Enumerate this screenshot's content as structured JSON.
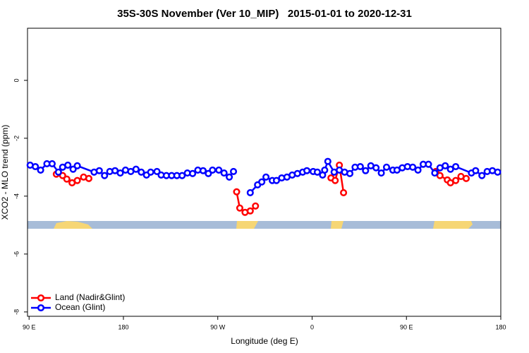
{
  "chart_data": {
    "type": "line",
    "title": "35S-30S November (Ver 10_MIP)   2015-01-01 to 2020-12-31",
    "x_label": "Longitude (deg E)",
    "y_label": "XCO2 - MLO trend (ppm)",
    "xlim": [
      88.5,
      540
    ],
    "ylim": [
      -8.15,
      1.8
    ],
    "xticks": [
      {
        "value": 90,
        "label": "90 E"
      },
      180,
      {
        "value": 270,
        "label": "90 W"
      },
      {
        "value": 360,
        "label": "0"
      },
      {
        "value": 450,
        "label": "90 E"
      },
      {
        "value": 540,
        "label": "180"
      }
    ],
    "yticks": [
      0,
      -2,
      -4,
      -6,
      -8
    ],
    "legend": "bottom-left",
    "series": [
      {
        "name": "Land (Nadir&Glint)",
        "color": "#ff0000",
        "x": [
          116,
          122,
          126,
          131,
          136,
          142,
          147,
          231,
          288,
          291,
          296,
          301,
          306,
          345,
          378,
          382,
          386,
          390,
          450,
          478,
          482,
          489,
          492,
          497,
          502,
          507
        ],
        "values": [
          -3.24,
          -3.29,
          -3.41,
          -3.54,
          -3.46,
          -3.34,
          -3.39,
          null,
          -3.85,
          -4.41,
          -4.56,
          -4.51,
          -4.34,
          null,
          -3.37,
          -3.46,
          -2.93,
          -3.88,
          null,
          -3.15,
          -3.29,
          -3.44,
          -3.54,
          -3.46,
          -3.32,
          -3.39
        ]
      },
      {
        "name": "Ocean (Glint)",
        "color": "#0000ff",
        "x": [
          91,
          96,
          101,
          107,
          112,
          118,
          122,
          127,
          132,
          136,
          152,
          157,
          162,
          167,
          172,
          177,
          182,
          187,
          192,
          197,
          202,
          206,
          212,
          216,
          221,
          226,
          231,
          236,
          241,
          246,
          251,
          256,
          261,
          265,
          271,
          276,
          281,
          285,
          293,
          301,
          308,
          312,
          316,
          322,
          326,
          331,
          336,
          341,
          346,
          351,
          355,
          361,
          365,
          370,
          372,
          375,
          381,
          386,
          391,
          396,
          401,
          406,
          411,
          416,
          421,
          426,
          431,
          437,
          441,
          446,
          451,
          456,
          461,
          466,
          471,
          477,
          482,
          487,
          492,
          497,
          512,
          516,
          522,
          527,
          532,
          537
        ],
        "values": [
          -2.93,
          -2.98,
          -3.1,
          -2.88,
          -2.88,
          -3.17,
          -3.0,
          -2.93,
          -3.07,
          -2.95,
          -3.17,
          -3.12,
          -3.29,
          -3.15,
          -3.12,
          -3.2,
          -3.1,
          -3.15,
          -3.07,
          -3.17,
          -3.27,
          -3.17,
          -3.15,
          -3.27,
          -3.29,
          -3.29,
          -3.29,
          -3.29,
          -3.2,
          -3.22,
          -3.1,
          -3.12,
          -3.22,
          -3.1,
          -3.1,
          -3.2,
          -3.34,
          -3.15,
          null,
          -3.88,
          -3.61,
          -3.51,
          -3.34,
          -3.46,
          -3.46,
          -3.37,
          -3.34,
          -3.27,
          -3.22,
          -3.17,
          -3.12,
          -3.15,
          -3.17,
          -3.27,
          -3.1,
          -2.8,
          -3.17,
          -3.1,
          -3.17,
          -3.22,
          -3.0,
          -2.98,
          -3.12,
          -2.95,
          -3.02,
          -3.2,
          -3.0,
          -3.1,
          -3.1,
          -3.02,
          -2.98,
          -3.0,
          -3.1,
          -2.9,
          -2.9,
          -3.2,
          -3.02,
          -2.95,
          -3.07,
          -2.98,
          -3.2,
          -3.12,
          -3.29,
          -3.15,
          -3.12,
          -3.17
        ]
      }
    ]
  }
}
